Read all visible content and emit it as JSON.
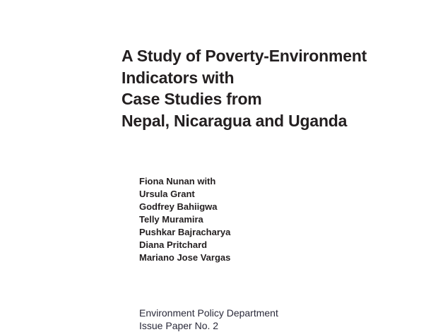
{
  "title_lines": [
    "A Study of Poverty-Environment",
    "Indicators with",
    "Case Studies from",
    "Nepal, Nicaragua and Uganda"
  ],
  "authors": [
    "Fiona Nunan with",
    "Ursula Grant",
    "Godfrey Bahiigwa",
    "Telly Muramira",
    "Pushkar Bajracharya",
    "Diana Pritchard",
    "Mariano Jose Vargas"
  ],
  "footer": {
    "department": "Environment Policy Department",
    "series": "Issue Paper No. 2"
  }
}
